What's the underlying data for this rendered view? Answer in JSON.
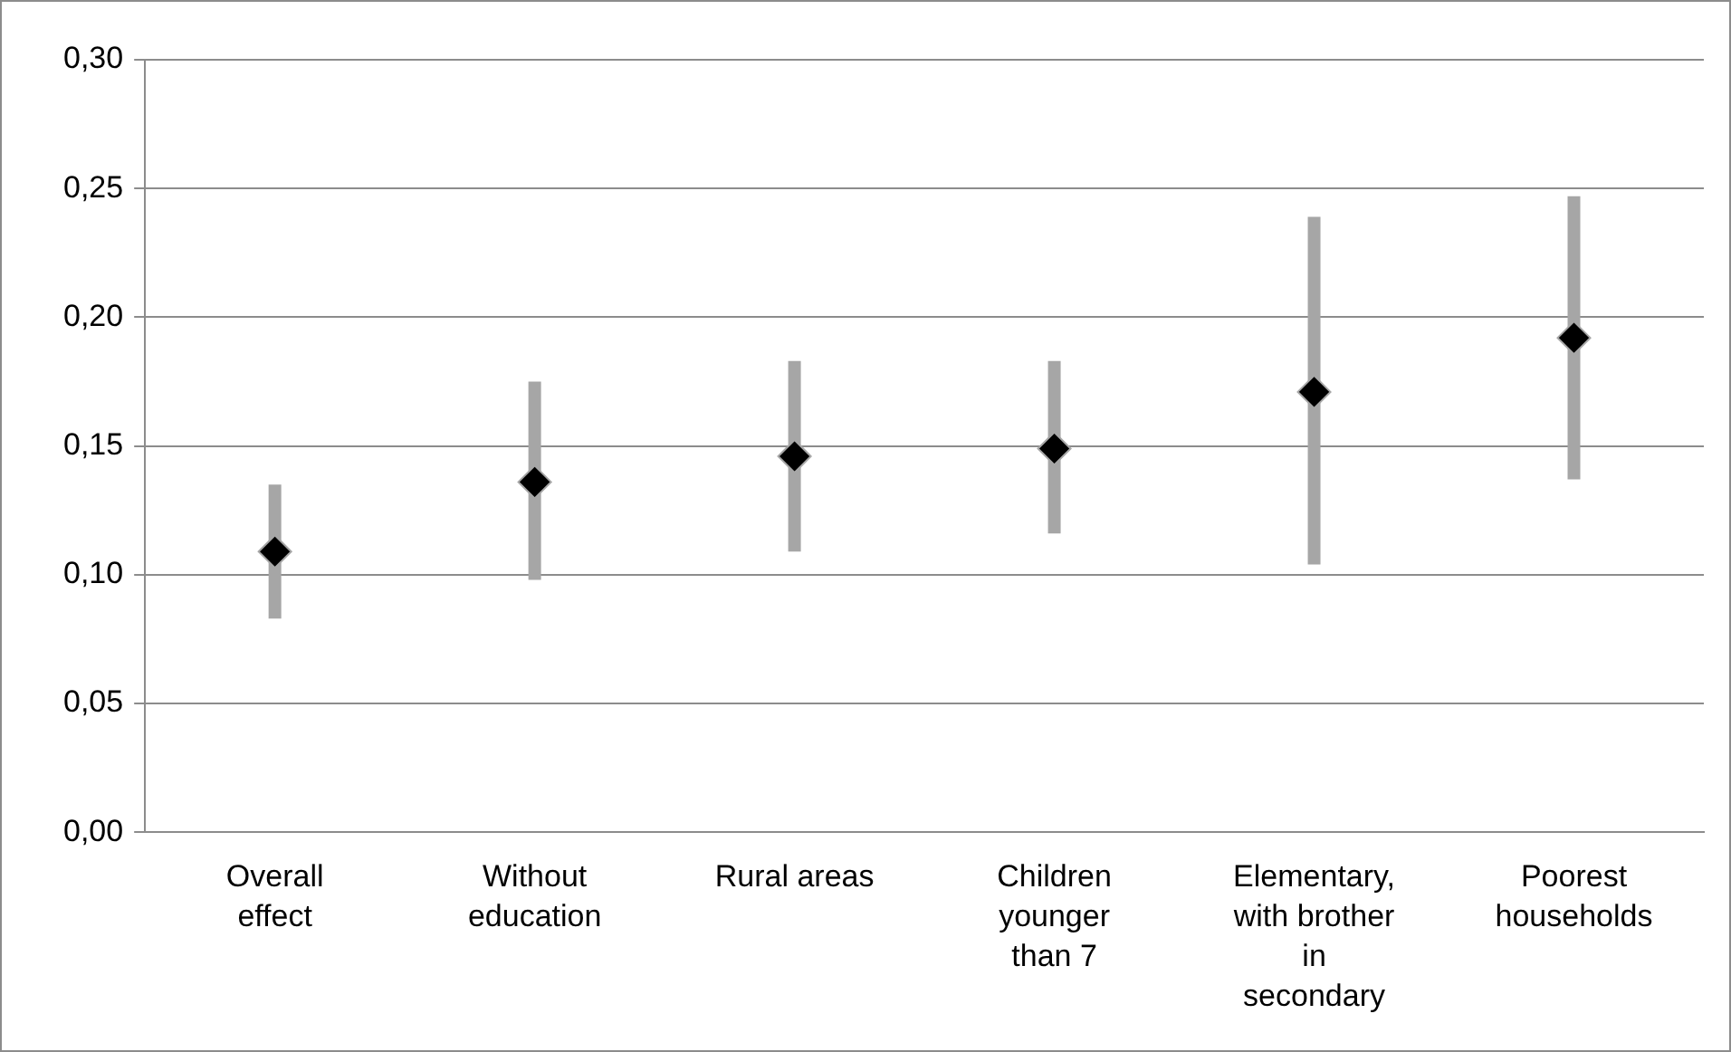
{
  "chart_data": {
    "type": "scatter",
    "categories": [
      "Overall effect",
      "Without education",
      "Rural areas",
      "Children younger than 7",
      "Elementary, with brother in secondary",
      "Poorest households"
    ],
    "series": [
      {
        "color": "#000000",
        "values": [
          0.109,
          0.136,
          0.146,
          0.149,
          0.171,
          0.192
        ],
        "errors": [
          [
            0.083,
            0.135
          ],
          [
            0.098,
            0.175
          ],
          [
            0.109,
            0.183
          ],
          [
            0.116,
            0.183
          ],
          [
            0.104,
            0.239
          ],
          [
            0.137,
            0.247
          ]
        ]
      }
    ],
    "ylim": [
      0,
      0.3
    ],
    "yticks": [
      {
        "value": 0,
        "label": "0,00"
      },
      {
        "value": 0.05,
        "label": "0,05"
      },
      {
        "value": 0.1,
        "label": "0,10"
      },
      {
        "value": 0.15,
        "label": "0,15"
      },
      {
        "value": 0.2,
        "label": "0,20"
      },
      {
        "value": 0.25,
        "label": "0,25"
      },
      {
        "value": 0.3,
        "label": "0,30"
      }
    ],
    "grid": "y",
    "legend": false,
    "marker": "diamond"
  }
}
